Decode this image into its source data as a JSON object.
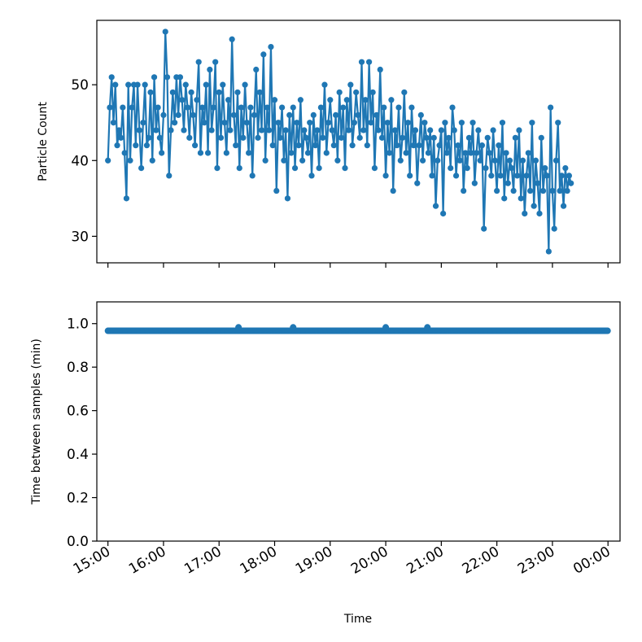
{
  "chart_data": [
    {
      "type": "line",
      "ylabel": "Particle Count",
      "xlabel": "",
      "ylim": [
        26.5,
        58.5
      ],
      "yticks": [
        30,
        40,
        50
      ],
      "x_range_minutes": [
        -12,
        553
      ],
      "x_tick_labels_shown": false,
      "markers": true,
      "color": "#1f77b4",
      "series": [
        {
          "x_minutes_from_15_00": [
            0,
            2,
            4,
            6,
            8,
            10,
            12,
            14,
            16,
            18,
            20,
            22,
            24,
            26,
            28,
            30,
            32,
            34,
            36,
            38,
            40,
            42,
            44,
            46,
            48,
            50,
            52,
            54,
            56,
            58,
            60,
            62,
            64,
            66,
            68,
            70,
            72,
            74,
            76,
            78,
            80,
            82,
            84,
            86,
            88,
            90,
            92,
            94,
            96,
            98,
            100,
            102,
            104,
            106,
            108,
            110,
            112,
            114,
            116,
            118,
            120,
            122,
            124,
            126,
            128,
            130,
            132,
            134,
            136,
            138,
            140,
            142,
            144,
            146,
            148,
            150,
            152,
            154,
            156,
            158,
            160,
            162,
            164,
            166,
            168,
            170,
            172,
            174,
            176,
            178,
            180,
            182,
            184,
            186,
            188,
            190,
            192,
            194,
            196,
            198,
            200,
            202,
            204,
            206,
            208,
            210,
            212,
            214,
            216,
            218,
            220,
            222,
            224,
            226,
            228,
            230,
            232,
            234,
            236,
            238,
            240,
            242,
            244,
            246,
            248,
            250,
            252,
            254,
            256,
            258,
            260,
            262,
            264,
            266,
            268,
            270,
            272,
            274,
            276,
            278,
            280,
            282,
            284,
            286,
            288,
            290,
            292,
            294,
            296,
            298,
            300,
            302,
            304,
            306,
            308,
            310,
            312,
            314,
            316,
            318,
            320,
            322,
            324,
            326,
            328,
            330,
            332,
            334,
            336,
            338,
            340,
            342,
            344,
            346,
            348,
            350,
            352,
            354,
            356,
            358,
            360,
            362,
            364,
            366,
            368,
            370,
            372,
            374,
            376,
            378,
            380,
            382,
            384,
            386,
            388,
            390,
            392,
            394,
            396,
            398,
            400,
            402,
            404,
            406,
            408,
            410,
            412,
            414,
            416,
            418,
            420,
            422,
            424,
            426,
            428,
            430,
            432,
            434,
            436,
            438,
            440,
            442,
            444,
            446,
            448,
            450,
            452,
            454,
            456,
            458,
            460,
            462,
            464,
            466,
            468,
            470,
            472,
            474,
            476,
            478,
            480,
            482,
            484,
            486,
            488,
            490,
            492,
            494,
            496,
            498,
            500,
            502,
            504,
            506,
            508,
            510,
            512,
            514,
            516,
            518,
            520,
            522,
            524,
            526,
            528,
            530,
            532,
            534,
            536,
            538,
            540
          ],
          "values": [
            40,
            47,
            51,
            45,
            50,
            42,
            44,
            43,
            47,
            41,
            35,
            50,
            40,
            47,
            50,
            42,
            50,
            44,
            39,
            45,
            50,
            42,
            43,
            49,
            40,
            51,
            44,
            47,
            43,
            41,
            46,
            57,
            51,
            38,
            44,
            49,
            45,
            51,
            46,
            51,
            48,
            44,
            50,
            47,
            43,
            49,
            46,
            42,
            48,
            53,
            41,
            47,
            45,
            50,
            41,
            52,
            44,
            47,
            53,
            39,
            49,
            43,
            50,
            45,
            41,
            48,
            44,
            56,
            46,
            42,
            49,
            39,
            47,
            43,
            50,
            45,
            41,
            47,
            38,
            46,
            52,
            43,
            49,
            44,
            54,
            40,
            47,
            44,
            55,
            42,
            48,
            36,
            45,
            43,
            47,
            40,
            44,
            35,
            46,
            41,
            47,
            39,
            45,
            42,
            48,
            40,
            44,
            43,
            41,
            45,
            38,
            46,
            42,
            44,
            39,
            47,
            43,
            50,
            41,
            45,
            48,
            44,
            42,
            46,
            40,
            49,
            43,
            47,
            39,
            48,
            44,
            50,
            42,
            45,
            49,
            46,
            43,
            53,
            44,
            48,
            42,
            53,
            45,
            49,
            39,
            46,
            44,
            52,
            43,
            47,
            38,
            45,
            41,
            48,
            36,
            44,
            42,
            47,
            40,
            43,
            49,
            41,
            45,
            38,
            47,
            42,
            44,
            37,
            42,
            46,
            40,
            45,
            43,
            41,
            44,
            38,
            43,
            34,
            40,
            42,
            44,
            33,
            45,
            41,
            43,
            39,
            47,
            44,
            38,
            42,
            40,
            45,
            36,
            41,
            39,
            43,
            41,
            45,
            37,
            41,
            44,
            40,
            42,
            31,
            39,
            43,
            41,
            38,
            44,
            40,
            36,
            42,
            38,
            45,
            35,
            41,
            37,
            40,
            39,
            36,
            43,
            38,
            44,
            35,
            40,
            33,
            38,
            41,
            36,
            45,
            34,
            40,
            37,
            33,
            43,
            36,
            39,
            38,
            28,
            47,
            36,
            31,
            40,
            45,
            36,
            38,
            34,
            39,
            36,
            38,
            37
          ]
        }
      ]
    },
    {
      "type": "scatter",
      "ylabel": "Time between samples (min)",
      "xlabel": "Time",
      "ylim": [
        0.0,
        1.1
      ],
      "yticks": [
        "0.0",
        "0.2",
        "0.4",
        "0.6",
        "0.8",
        "1.0"
      ],
      "x_range_minutes": [
        -12,
        553
      ],
      "x_tick_labels": [
        "15:00",
        "16:00",
        "17:00",
        "18:00",
        "19:00",
        "20:00",
        "21:00",
        "22:00",
        "23:00",
        "00:00"
      ],
      "x_ticks_minutes": [
        0,
        60,
        120,
        180,
        240,
        300,
        360,
        420,
        480,
        540
      ],
      "color": "#1f77b4",
      "series": [
        {
          "baseline_value": 0.967,
          "x_start_minutes": 0,
          "x_end_minutes": 540,
          "x_step_minutes": 0.967,
          "outliers": [
            {
              "x_minutes_from_15_00": 141,
              "value": 0.983
            },
            {
              "x_minutes_from_15_00": 200,
              "value": 0.983
            },
            {
              "x_minutes_from_15_00": 300,
              "value": 0.983
            },
            {
              "x_minutes_from_15_00": 345,
              "value": 0.983
            }
          ]
        }
      ]
    }
  ]
}
